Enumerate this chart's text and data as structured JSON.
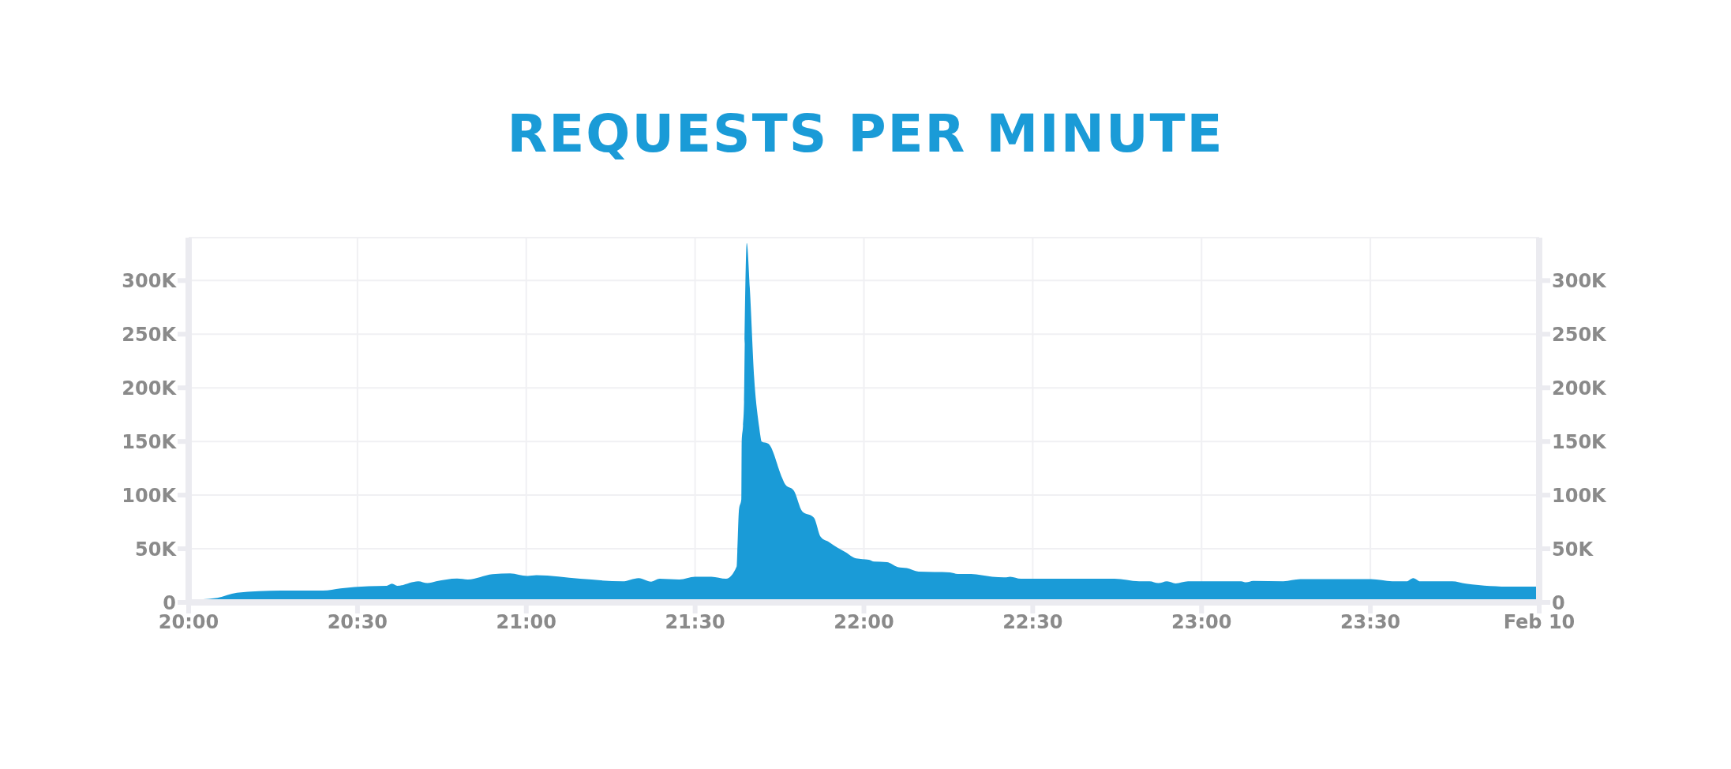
{
  "chart_data": {
    "type": "area",
    "title": "REQUESTS PER MINUTE",
    "x": [
      20.0,
      20.085,
      20.143,
      20.273,
      20.398,
      20.45,
      20.533,
      20.587,
      20.602,
      20.618,
      20.68,
      20.707,
      20.733,
      20.795,
      20.827,
      20.9,
      20.952,
      21.003,
      21.03,
      21.16,
      21.285,
      21.333,
      21.37,
      21.395,
      21.453,
      21.5,
      21.548,
      21.592,
      21.623,
      21.625,
      21.63,
      21.637,
      21.638,
      21.642,
      21.645,
      21.647,
      21.653,
      21.662,
      21.675,
      21.69,
      21.693,
      21.697,
      21.717,
      21.758,
      21.767,
      21.793,
      21.817,
      21.852,
      21.872,
      21.898,
      21.922,
      21.945,
      21.977,
      22.015,
      22.03,
      22.068,
      22.1,
      22.127,
      22.162,
      22.255,
      22.278,
      22.317,
      22.38,
      22.418,
      22.433,
      22.465,
      22.742,
      22.815,
      22.846,
      22.872,
      22.898,
      22.923,
      22.96,
      23.117,
      23.132,
      23.153,
      23.242,
      23.293,
      23.502,
      23.565,
      23.607,
      23.627,
      23.648,
      23.742,
      23.783,
      23.82,
      23.888,
      24.0
    ],
    "series": [
      {
        "color": "#1a9bd7",
        "values": [
          2300,
          4300,
          9000,
          11000,
          11000,
          13000,
          15000,
          15500,
          17400,
          15500,
          19700,
          18000,
          19700,
          22300,
          21400,
          26300,
          27000,
          24600,
          25300,
          22000,
          19700,
          22700,
          19400,
          22000,
          21400,
          24000,
          24000,
          22000,
          33400,
          47000,
          86600,
          96400,
          150000,
          165000,
          187000,
          241000,
          335000,
          293000,
          209000,
          163000,
          156000,
          150000,
          148000,
          116000,
          110000,
          104000,
          85000,
          79000,
          61000,
          56000,
          51000,
          47000,
          41000,
          39700,
          38000,
          37500,
          33000,
          32000,
          28700,
          28000,
          26500,
          26500,
          24000,
          23300,
          24000,
          22000,
          22000,
          19700,
          19700,
          18000,
          19700,
          17700,
          19700,
          19700,
          18700,
          20000,
          19700,
          21700,
          21700,
          19700,
          19700,
          22700,
          19700,
          19700,
          17400,
          16100,
          14800,
          14800
        ]
      }
    ],
    "xlim": [
      20,
      24
    ],
    "xticks": [
      {
        "value": 20,
        "label": "20:00"
      },
      {
        "value": 20.5,
        "label": "20:30"
      },
      {
        "value": 21,
        "label": "21:00"
      },
      {
        "value": 21.5,
        "label": "21:30"
      },
      {
        "value": 22,
        "label": "22:00"
      },
      {
        "value": 22.5,
        "label": "22:30"
      },
      {
        "value": 23,
        "label": "23:00"
      },
      {
        "value": 23.5,
        "label": "23:30"
      },
      {
        "value": 24,
        "label": "Feb 10"
      }
    ],
    "ylim": [
      0,
      340000
    ],
    "yticks": [
      0,
      {
        "value": 50000,
        "label": "50K"
      },
      {
        "value": 100000,
        "label": "100K"
      },
      {
        "value": 150000,
        "label": "150K"
      },
      {
        "value": 200000,
        "label": "200K"
      },
      {
        "value": 250000,
        "label": "250K"
      },
      {
        "value": 300000,
        "label": "300K"
      }
    ],
    "y2lim": [
      0,
      340000
    ],
    "y2ticks": [
      0,
      {
        "value": 50000,
        "label": "50K"
      },
      {
        "value": 100000,
        "label": "100K"
      },
      {
        "value": 150000,
        "label": "150K"
      },
      {
        "value": 200000,
        "label": "200K"
      },
      {
        "value": 250000,
        "label": "250K"
      },
      {
        "value": 300000,
        "label": "300K"
      }
    ],
    "grid": true
  }
}
